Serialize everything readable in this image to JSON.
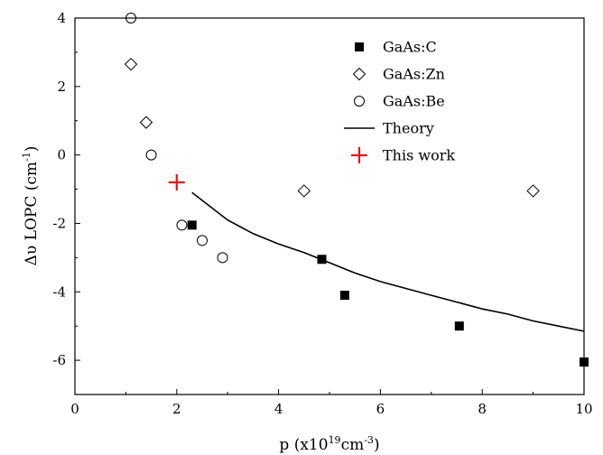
{
  "chart_data": {
    "type": "scatter",
    "title": "",
    "xlabel": {
      "base": "p (x10",
      "sup1": "19",
      "mid": "cm",
      "sup2": "-3",
      "end": ")"
    },
    "ylabel": {
      "base": "Δυ LOPC (cm",
      "sup": "-1",
      "end": ")"
    },
    "xlim": [
      0,
      10
    ],
    "ylim": [
      -7,
      4
    ],
    "xticks": [
      "0",
      "2",
      "4",
      "6",
      "8",
      "10"
    ],
    "yticks": [
      "4",
      "2",
      "0",
      "-2",
      "-4",
      "-6"
    ],
    "grid": false,
    "legend_position": "top-right",
    "series": [
      {
        "name": "GaAs:C",
        "marker": "filled-square",
        "color": "#000000",
        "points": [
          [
            2.3,
            -2.05
          ],
          [
            4.85,
            -3.05
          ],
          [
            5.3,
            -4.1
          ],
          [
            7.55,
            -5.0
          ],
          [
            10.0,
            -6.05
          ]
        ]
      },
      {
        "name": "GaAs:Zn",
        "marker": "open-diamond",
        "color": "#000000",
        "points": [
          [
            1.1,
            2.65
          ],
          [
            1.4,
            0.95
          ],
          [
            4.5,
            -1.05
          ],
          [
            9.0,
            -1.05
          ]
        ]
      },
      {
        "name": "GaAs:Be",
        "marker": "open-circle",
        "color": "#000000",
        "points": [
          [
            1.1,
            4.0
          ],
          [
            1.5,
            0.0
          ],
          [
            2.1,
            -2.05
          ],
          [
            2.5,
            -2.5
          ],
          [
            2.9,
            -3.0
          ]
        ]
      },
      {
        "name": "Theory",
        "marker": "line",
        "color": "#000000",
        "points": [
          [
            2.3,
            -1.1
          ],
          [
            3.0,
            -1.9
          ],
          [
            3.5,
            -2.3
          ],
          [
            4.0,
            -2.6
          ],
          [
            4.5,
            -2.85
          ],
          [
            5.0,
            -3.15
          ],
          [
            5.5,
            -3.45
          ],
          [
            6.0,
            -3.7
          ],
          [
            6.5,
            -3.9
          ],
          [
            7.0,
            -4.1
          ],
          [
            7.5,
            -4.3
          ],
          [
            8.0,
            -4.5
          ],
          [
            8.5,
            -4.65
          ],
          [
            9.0,
            -4.85
          ],
          [
            9.5,
            -5.0
          ],
          [
            10.0,
            -5.15
          ]
        ]
      },
      {
        "name": "This work",
        "marker": "plus",
        "color": "#e8141b",
        "points": [
          [
            2.0,
            -0.8
          ]
        ]
      }
    ]
  }
}
